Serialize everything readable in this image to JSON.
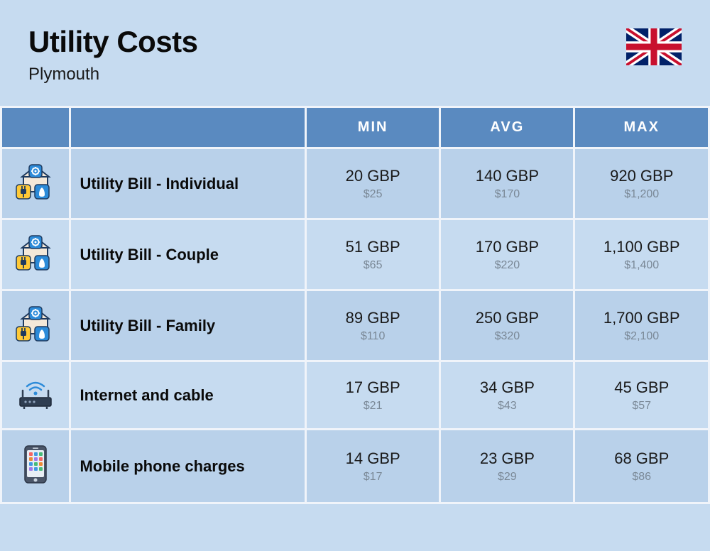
{
  "header": {
    "title": "Utility Costs",
    "subtitle": "Plymouth"
  },
  "columns": {
    "min": "MIN",
    "avg": "AVG",
    "max": "MAX"
  },
  "rows": [
    {
      "icon": "utility",
      "label": "Utility Bill - Individual",
      "min_main": "20 GBP",
      "min_sub": "$25",
      "avg_main": "140 GBP",
      "avg_sub": "$170",
      "max_main": "920 GBP",
      "max_sub": "$1,200"
    },
    {
      "icon": "utility",
      "label": "Utility Bill - Couple",
      "min_main": "51 GBP",
      "min_sub": "$65",
      "avg_main": "170 GBP",
      "avg_sub": "$220",
      "max_main": "1,100 GBP",
      "max_sub": "$1,400"
    },
    {
      "icon": "utility",
      "label": "Utility Bill - Family",
      "min_main": "89 GBP",
      "min_sub": "$110",
      "avg_main": "250 GBP",
      "avg_sub": "$320",
      "max_main": "1,700 GBP",
      "max_sub": "$2,100"
    },
    {
      "icon": "router",
      "label": "Internet and cable",
      "min_main": "17 GBP",
      "min_sub": "$21",
      "avg_main": "34 GBP",
      "avg_sub": "$43",
      "max_main": "45 GBP",
      "max_sub": "$57"
    },
    {
      "icon": "phone",
      "label": "Mobile phone charges",
      "min_main": "14 GBP",
      "min_sub": "$17",
      "avg_main": "23 GBP",
      "avg_sub": "$29",
      "max_main": "68 GBP",
      "max_sub": "$86"
    }
  ],
  "colors": {
    "page_bg": "#c6dbf0",
    "header_bg": "#5a8ac0",
    "row_a": "#b9d1ea",
    "row_b": "#c6dbf0",
    "text_main": "#1a1a1a",
    "text_sub": "#7a8896",
    "flag_blue": "#012169",
    "flag_red": "#c8102e",
    "flag_white": "#ffffff",
    "icon_blue": "#2c8bd9",
    "icon_yellow": "#ffc936",
    "icon_dark": "#1e3a5f",
    "router_blue": "#2c8bd9",
    "phone_body": "#4a5568"
  }
}
